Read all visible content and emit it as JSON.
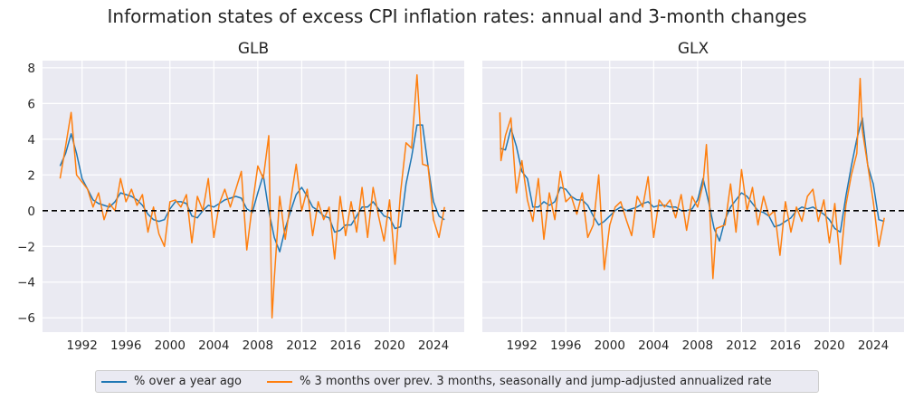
{
  "title": "Information states of excess CPI inflation rates: annual and 3-month changes",
  "legend": [
    {
      "label": "% over a year ago",
      "color": "#1f77b4"
    },
    {
      "label": "% 3 months over prev. 3 months, seasonally and jump-adjusted annualized rate",
      "color": "#ff7f0e"
    }
  ],
  "chart_data": [
    {
      "type": "line",
      "title": "GLB",
      "xlim": [
        1988.4,
        2026.8
      ],
      "ylim": [
        -6.8,
        8.4
      ],
      "xticks": [
        1992,
        1996,
        2000,
        2004,
        2008,
        2012,
        2016,
        2020,
        2024
      ],
      "yticks": [
        -6,
        -4,
        -2,
        0,
        2,
        4,
        6,
        8
      ],
      "hline": 0,
      "grid": true,
      "series": [
        {
          "name": "% over a year ago",
          "color": "#1f77b4",
          "x": [
            1990,
            1990.5,
            1991,
            1991.5,
            1992,
            1992.5,
            1993,
            1993.5,
            1994,
            1994.5,
            1995,
            1995.5,
            1996,
            1996.5,
            1997,
            1997.5,
            1998,
            1998.5,
            1999,
            1999.5,
            2000,
            2000.5,
            2001,
            2001.5,
            2002,
            2002.5,
            2003,
            2003.5,
            2004,
            2004.5,
            2005,
            2005.5,
            2006,
            2006.5,
            2007,
            2007.5,
            2008,
            2008.5,
            2009,
            2009.5,
            2010,
            2010.5,
            2011,
            2011.5,
            2012,
            2012.5,
            2013,
            2013.5,
            2014,
            2014.5,
            2015,
            2015.5,
            2016,
            2016.5,
            2017,
            2017.5,
            2018,
            2018.5,
            2019,
            2019.5,
            2020,
            2020.5,
            2021,
            2021.5,
            2022,
            2022.5,
            2023,
            2023.5,
            2024,
            2024.5,
            2025
          ],
          "y": [
            2.5,
            3.2,
            4.3,
            3.2,
            1.8,
            1.2,
            0.6,
            0.4,
            0.3,
            0.2,
            0.5,
            1.0,
            0.9,
            0.8,
            0.6,
            0.3,
            -0.2,
            -0.5,
            -0.6,
            -0.5,
            0.1,
            0.5,
            0.5,
            0.4,
            -0.3,
            -0.4,
            0.0,
            0.3,
            0.2,
            0.4,
            0.6,
            0.7,
            0.8,
            0.7,
            0.1,
            -0.1,
            1.0,
            2.0,
            0.0,
            -1.5,
            -2.3,
            -1.0,
            0.0,
            0.9,
            1.3,
            0.8,
            0.2,
            0.0,
            -0.3,
            -0.4,
            -1.2,
            -1.1,
            -0.8,
            -0.8,
            -0.3,
            0.2,
            0.2,
            0.5,
            0.1,
            -0.3,
            -0.4,
            -1.0,
            -0.9,
            1.5,
            3.0,
            4.8,
            4.8,
            2.5,
            0.5,
            -0.3,
            -0.5
          ]
        },
        {
          "name": "% 3 months over prev. 3 months, seasonally and jump-adjusted annualized rate",
          "color": "#ff7f0e",
          "x": [
            1990,
            1990.5,
            1991,
            1991.5,
            1992,
            1992.5,
            1993,
            1993.5,
            1994,
            1994.5,
            1995,
            1995.5,
            1996,
            1996.5,
            1997,
            1997.5,
            1998,
            1998.5,
            1999,
            1999.5,
            2000,
            2000.5,
            2001,
            2001.5,
            2002,
            2002.5,
            2003,
            2003.5,
            2004,
            2004.5,
            2005,
            2005.5,
            2006,
            2006.5,
            2007,
            2007.5,
            2008,
            2008.5,
            2009,
            2009.3,
            2009.5,
            2010,
            2010.5,
            2011,
            2011.5,
            2012,
            2012.5,
            2013,
            2013.5,
            2014,
            2014.5,
            2015,
            2015.5,
            2016,
            2016.5,
            2017,
            2017.5,
            2018,
            2018.5,
            2019,
            2019.5,
            2020,
            2020.5,
            2021,
            2021.5,
            2022,
            2022.5,
            2023,
            2023.5,
            2024,
            2024.5,
            2025
          ],
          "y": [
            1.8,
            3.6,
            5.5,
            2.0,
            1.6,
            1.2,
            0.2,
            1.0,
            -0.5,
            0.4,
            0.0,
            1.8,
            0.5,
            1.2,
            0.3,
            0.9,
            -1.2,
            0.2,
            -1.3,
            -2.0,
            0.5,
            0.6,
            0.2,
            0.9,
            -1.8,
            0.8,
            0.0,
            1.8,
            -1.5,
            0.4,
            1.2,
            0.2,
            1.2,
            2.2,
            -2.2,
            0.3,
            2.5,
            1.8,
            4.2,
            -6.0,
            -3.8,
            0.8,
            -1.6,
            0.6,
            2.6,
            0.0,
            1.2,
            -1.4,
            0.5,
            -0.5,
            0.2,
            -2.7,
            0.8,
            -1.4,
            0.5,
            -1.2,
            1.3,
            -1.5,
            1.3,
            -0.3,
            -1.7,
            0.6,
            -3.0,
            1.0,
            3.8,
            3.5,
            7.6,
            2.6,
            2.5,
            -0.5,
            -1.5,
            0.2
          ]
        }
      ]
    },
    {
      "type": "line",
      "title": "GLX",
      "xlim": [
        1988.4,
        2026.8
      ],
      "ylim": [
        -6.8,
        8.4
      ],
      "xticks": [
        1992,
        1996,
        2000,
        2004,
        2008,
        2012,
        2016,
        2020,
        2024
      ],
      "yticks": [
        -6,
        -4,
        -2,
        0,
        2,
        4,
        6,
        8
      ],
      "hline": 0,
      "grid": true,
      "series": [
        {
          "name": "% over a year ago",
          "color": "#1f77b4",
          "x": [
            1990,
            1990.5,
            1991,
            1991.5,
            1992,
            1992.5,
            1993,
            1993.5,
            1994,
            1994.5,
            1995,
            1995.5,
            1996,
            1996.5,
            1997,
            1997.5,
            1998,
            1998.5,
            1999,
            1999.5,
            2000,
            2000.5,
            2001,
            2001.5,
            2002,
            2002.5,
            2003,
            2003.5,
            2004,
            2004.5,
            2005,
            2005.5,
            2006,
            2006.5,
            2007,
            2007.5,
            2008,
            2008.5,
            2009,
            2009.5,
            2010,
            2010.5,
            2011,
            2011.5,
            2012,
            2012.5,
            2013,
            2013.5,
            2014,
            2014.5,
            2015,
            2015.5,
            2016,
            2016.5,
            2017,
            2017.5,
            2018,
            2018.5,
            2019,
            2019.5,
            2020,
            2020.5,
            2021,
            2021.5,
            2022,
            2022.5,
            2023,
            2023.5,
            2024,
            2024.5,
            2025
          ],
          "y": [
            3.5,
            3.4,
            4.6,
            3.6,
            2.2,
            1.8,
            0.2,
            0.2,
            0.5,
            0.3,
            0.5,
            1.3,
            1.2,
            0.8,
            0.6,
            0.6,
            0.3,
            -0.3,
            -0.8,
            -0.6,
            -0.3,
            0.0,
            0.2,
            0.0,
            0.1,
            0.2,
            0.4,
            0.5,
            0.2,
            0.3,
            0.3,
            0.2,
            0.2,
            0.0,
            0.0,
            0.1,
            0.6,
            1.8,
            0.5,
            -1.0,
            -1.7,
            -0.5,
            0.2,
            0.6,
            1.0,
            0.8,
            0.4,
            0.0,
            -0.1,
            -0.3,
            -0.9,
            -0.8,
            -0.6,
            -0.4,
            0.0,
            0.2,
            0.1,
            0.2,
            0.0,
            -0.2,
            -0.5,
            -1.0,
            -1.2,
            0.8,
            2.5,
            4.0,
            5.2,
            2.5,
            1.5,
            -0.5,
            -0.6
          ]
        },
        {
          "name": "% 3 months over prev. 3 months, seasonally and jump-adjusted annualized rate",
          "color": "#ff7f0e",
          "x": [
            1990,
            1990.1,
            1990.5,
            1991,
            1991.5,
            1992,
            1992.5,
            1993,
            1993.5,
            1994,
            1994.5,
            1995,
            1995.5,
            1996,
            1996.5,
            1997,
            1997.5,
            1998,
            1998.5,
            1999,
            1999.5,
            2000,
            2000.5,
            2001,
            2001.5,
            2002,
            2002.5,
            2003,
            2003.5,
            2004,
            2004.5,
            2005,
            2005.5,
            2006,
            2006.5,
            2007,
            2007.5,
            2008,
            2008.5,
            2008.8,
            2009,
            2009.4,
            2009.7,
            2010.5,
            2011,
            2011.5,
            2012,
            2012.5,
            2013,
            2013.5,
            2014,
            2014.5,
            2015,
            2015.5,
            2016,
            2016.5,
            2017,
            2017.5,
            2018,
            2018.5,
            2019,
            2019.5,
            2020,
            2020.5,
            2021,
            2021.5,
            2022,
            2022.5,
            2022.8,
            2023,
            2023.5,
            2024,
            2024.5,
            2025
          ],
          "y": [
            5.5,
            2.8,
            4.2,
            5.2,
            1.0,
            2.8,
            0.6,
            -0.6,
            1.8,
            -1.6,
            1.0,
            -0.5,
            2.2,
            0.5,
            0.8,
            -0.2,
            1.0,
            -1.5,
            -0.8,
            2.0,
            -3.3,
            -0.8,
            0.2,
            0.5,
            -0.5,
            -1.4,
            0.8,
            0.2,
            1.9,
            -1.5,
            0.6,
            0.2,
            0.6,
            -0.4,
            0.9,
            -1.1,
            0.8,
            0.2,
            1.5,
            3.7,
            1.5,
            -3.8,
            -1.0,
            -0.8,
            1.5,
            -1.2,
            2.3,
            0.0,
            1.3,
            -0.8,
            0.8,
            -0.3,
            0.0,
            -2.5,
            0.5,
            -1.2,
            0.2,
            -0.6,
            0.8,
            1.2,
            -0.6,
            0.6,
            -1.8,
            0.4,
            -3.0,
            0.3,
            2.0,
            3.2,
            7.4,
            4.5,
            2.5,
            0.5,
            -2.0,
            -0.4
          ]
        }
      ]
    }
  ]
}
